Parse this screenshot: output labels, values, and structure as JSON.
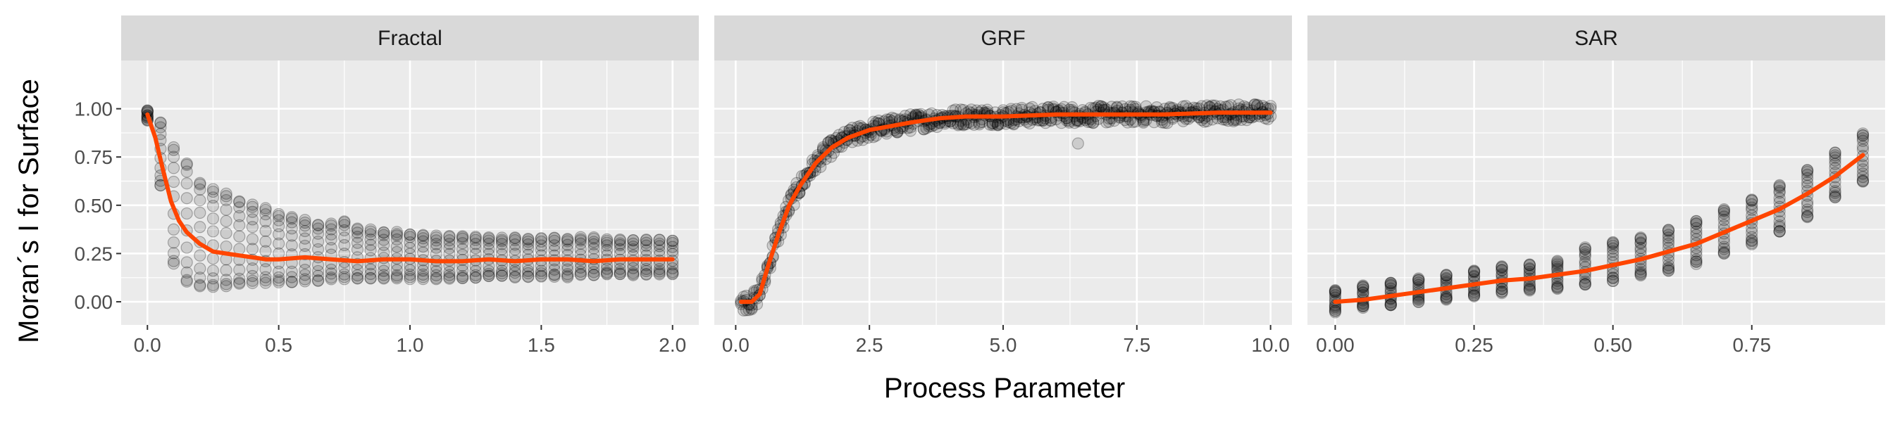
{
  "chart_data": {
    "type": "scatter",
    "xlabel": "Process Parameter",
    "ylabel": "Moran´s I for Surface",
    "ylim": [
      -0.12,
      1.25
    ],
    "y_ticks": [
      0.0,
      0.25,
      0.5,
      0.75,
      1.0
    ],
    "y_tick_labels": [
      "0.00",
      "0.25",
      "0.50",
      "0.75",
      "1.00"
    ],
    "grid": true,
    "colors": {
      "panel_background": "#ebebeb",
      "strip_background": "#d9d9d9",
      "grid": "#ffffff",
      "points": "#000000",
      "trend_line": "#ff4500"
    },
    "panels": [
      {
        "title": "Fractal",
        "xlim": [
          -0.1,
          2.1
        ],
        "x_ticks": [
          0.0,
          0.5,
          1.0,
          1.5,
          2.0
        ],
        "x_tick_labels": [
          "0.0",
          "0.5",
          "1.0",
          "1.5",
          "2.0"
        ],
        "trend": {
          "x": [
            0.0,
            0.03,
            0.06,
            0.09,
            0.12,
            0.15,
            0.2,
            0.25,
            0.3,
            0.35,
            0.4,
            0.45,
            0.5,
            0.6,
            0.7,
            0.8,
            0.9,
            1.0,
            1.1,
            1.2,
            1.3,
            1.4,
            1.5,
            1.6,
            1.7,
            1.8,
            1.9,
            2.0
          ],
          "y": [
            0.97,
            0.85,
            0.68,
            0.52,
            0.42,
            0.36,
            0.3,
            0.26,
            0.25,
            0.24,
            0.23,
            0.22,
            0.22,
            0.23,
            0.22,
            0.21,
            0.22,
            0.22,
            0.21,
            0.21,
            0.22,
            0.21,
            0.22,
            0.22,
            0.21,
            0.22,
            0.22,
            0.22
          ]
        },
        "points": {
          "x": [
            0.0,
            0.05,
            0.1,
            0.15,
            0.2,
            0.25,
            0.3,
            0.35,
            0.4,
            0.45,
            0.5,
            0.55,
            0.6,
            0.65,
            0.7,
            0.75,
            0.8,
            0.85,
            0.9,
            0.95,
            1.0,
            1.05,
            1.1,
            1.15,
            1.2,
            1.25,
            1.3,
            1.35,
            1.4,
            1.45,
            1.5,
            1.55,
            1.6,
            1.65,
            1.7,
            1.75,
            1.8,
            1.85,
            1.9,
            1.95,
            2.0
          ],
          "y_min": [
            0.94,
            0.6,
            0.2,
            0.1,
            0.08,
            0.08,
            0.08,
            0.09,
            0.1,
            0.1,
            0.1,
            0.1,
            0.11,
            0.11,
            0.12,
            0.12,
            0.12,
            0.12,
            0.12,
            0.12,
            0.12,
            0.12,
            0.12,
            0.12,
            0.12,
            0.12,
            0.13,
            0.13,
            0.13,
            0.13,
            0.13,
            0.13,
            0.13,
            0.14,
            0.14,
            0.14,
            0.14,
            0.14,
            0.14,
            0.14,
            0.14
          ],
          "y_max": [
            0.99,
            0.93,
            0.8,
            0.72,
            0.62,
            0.58,
            0.56,
            0.52,
            0.5,
            0.48,
            0.45,
            0.44,
            0.42,
            0.4,
            0.4,
            0.42,
            0.38,
            0.37,
            0.36,
            0.36,
            0.35,
            0.35,
            0.34,
            0.34,
            0.34,
            0.34,
            0.33,
            0.33,
            0.33,
            0.33,
            0.33,
            0.33,
            0.33,
            0.33,
            0.33,
            0.32,
            0.32,
            0.32,
            0.32,
            0.32,
            0.32
          ],
          "count_per_x": 12
        }
      },
      {
        "title": "GRF",
        "xlim": [
          -0.4,
          10.4
        ],
        "x_ticks": [
          0.0,
          2.5,
          5.0,
          7.5,
          10.0
        ],
        "x_tick_labels": [
          "0.0",
          "2.5",
          "5.0",
          "7.5",
          "10.0"
        ],
        "trend": {
          "x": [
            0.1,
            0.3,
            0.45,
            0.6,
            0.8,
            1.0,
            1.2,
            1.5,
            1.8,
            2.1,
            2.5,
            2.9,
            3.3,
            3.8,
            4.3,
            5.0,
            6.0,
            7.0,
            8.0,
            9.0,
            10.0
          ],
          "y": [
            0.0,
            0.0,
            0.04,
            0.18,
            0.35,
            0.5,
            0.6,
            0.72,
            0.8,
            0.85,
            0.89,
            0.91,
            0.93,
            0.95,
            0.96,
            0.96,
            0.97,
            0.97,
            0.97,
            0.98,
            0.98
          ]
        },
        "points": {
          "spread": 0.045,
          "count_per_x": 3,
          "outliers": [
            [
              6.4,
              0.82
            ]
          ]
        }
      },
      {
        "title": "SAR",
        "xlim": [
          -0.05,
          0.99
        ],
        "x_ticks": [
          0.0,
          0.25,
          0.5,
          0.75
        ],
        "x_tick_labels": [
          "0.00",
          "0.25",
          "0.50",
          "0.75"
        ],
        "trend": {
          "x": [
            0.0,
            0.05,
            0.1,
            0.15,
            0.2,
            0.25,
            0.3,
            0.35,
            0.4,
            0.45,
            0.5,
            0.55,
            0.6,
            0.65,
            0.7,
            0.75,
            0.8,
            0.85,
            0.9,
            0.95
          ],
          "y": [
            0.0,
            0.01,
            0.03,
            0.05,
            0.07,
            0.09,
            0.11,
            0.12,
            0.14,
            0.16,
            0.19,
            0.22,
            0.26,
            0.3,
            0.36,
            0.42,
            0.48,
            0.56,
            0.65,
            0.76
          ]
        },
        "points": {
          "x": [
            0.0,
            0.05,
            0.1,
            0.15,
            0.2,
            0.25,
            0.3,
            0.35,
            0.4,
            0.45,
            0.5,
            0.55,
            0.6,
            0.65,
            0.7,
            0.75,
            0.8,
            0.85,
            0.9,
            0.95
          ],
          "y_min": [
            -0.05,
            -0.03,
            -0.02,
            0.0,
            0.01,
            0.03,
            0.05,
            0.06,
            0.07,
            0.09,
            0.11,
            0.14,
            0.16,
            0.2,
            0.25,
            0.3,
            0.36,
            0.44,
            0.54,
            0.62
          ],
          "y_max": [
            0.06,
            0.08,
            0.1,
            0.12,
            0.14,
            0.16,
            0.18,
            0.19,
            0.21,
            0.28,
            0.31,
            0.33,
            0.37,
            0.42,
            0.48,
            0.53,
            0.6,
            0.68,
            0.77,
            0.87
          ],
          "count_per_x": 16
        }
      }
    ]
  }
}
